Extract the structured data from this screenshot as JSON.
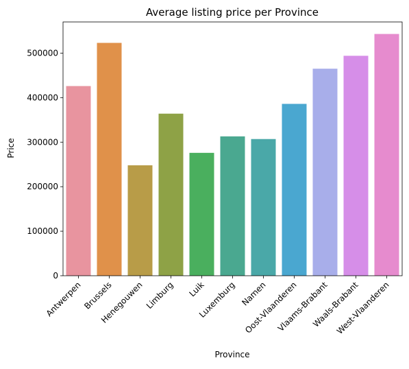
{
  "chart_data": {
    "type": "bar",
    "title": "Average listing price per Province",
    "xlabel": "Province",
    "ylabel": "Price",
    "categories": [
      "Antwerpen",
      "Brussels",
      "Henegouwen",
      "Limburg",
      "Luik",
      "Luxemburg",
      "Namen",
      "Oost-Vlaanderen",
      "Vlaams-Brabant",
      "Waals-Brabant",
      "West-Vlaanderen"
    ],
    "values": [
      426000,
      523000,
      248000,
      364000,
      276000,
      313000,
      307000,
      386000,
      465000,
      494000,
      543000
    ],
    "colors": [
      "#e8949f",
      "#e0914a",
      "#b89c48",
      "#8ea246",
      "#4aaf5e",
      "#4aa890",
      "#4aa8a8",
      "#4aa7d0",
      "#a8aeea",
      "#d68ee8",
      "#e68bce"
    ],
    "ylim": [
      0,
      570000
    ],
    "yticks": [
      0,
      100000,
      200000,
      300000,
      400000,
      500000
    ],
    "ytick_labels": [
      "0",
      "100000",
      "200000",
      "300000",
      "400000",
      "500000"
    ],
    "grid": false,
    "legend": "none"
  }
}
